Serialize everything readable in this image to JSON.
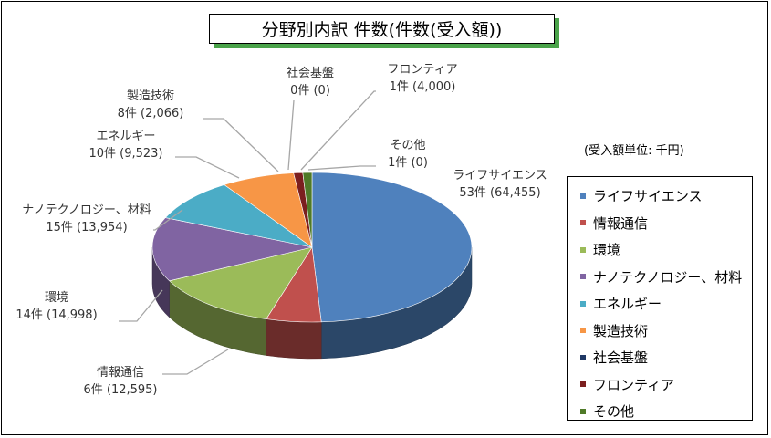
{
  "title": "分野別内訳 件数(件数(受入額))",
  "unit_note": "(受入額単位: 千円)",
  "chart_data": {
    "type": "pie",
    "style": "3d",
    "title": "分野別内訳 件数(件数(受入額))",
    "categories": [
      "ライフサイエンス",
      "情報通信",
      "環境",
      "ナノテクノロジー、材料",
      "エネルギー",
      "製造技術",
      "社会基盤",
      "フロンティア",
      "その他"
    ],
    "values": [
      53,
      6,
      14,
      15,
      10,
      8,
      0,
      1,
      1
    ],
    "amounts": [
      64455,
      12595,
      14998,
      13954,
      9523,
      2066,
      0,
      4000,
      0
    ],
    "data_labels": [
      {
        "name": "ライフサイエンス",
        "text": "53件 (64,455)"
      },
      {
        "name": "情報通信",
        "text": "6件 (12,595)"
      },
      {
        "name": "環境",
        "text": "14件 (14,998)"
      },
      {
        "name": "ナノテクノロジー、材料",
        "text": "15件 (13,954)"
      },
      {
        "name": "エネルギー",
        "text": "10件 (9,523)"
      },
      {
        "name": "製造技術",
        "text": "8件 (2,066)"
      },
      {
        "name": "社会基盤",
        "text": "0件 (0)"
      },
      {
        "name": "フロンティア",
        "text": "1件 (4,000)"
      },
      {
        "name": "その他",
        "text": "1件 (0)"
      }
    ],
    "colors": [
      "#4f81bd",
      "#c0504d",
      "#9bbb59",
      "#8064a2",
      "#4bacc6",
      "#f79646",
      "#1f3864",
      "#7b1f1f",
      "#4f7a28"
    ],
    "legend_position": "right"
  },
  "legend": {
    "items": [
      {
        "label": "ライフサイエンス",
        "color": "#4f81bd"
      },
      {
        "label": "情報通信",
        "color": "#c0504d"
      },
      {
        "label": "環境",
        "color": "#9bbb59"
      },
      {
        "label": "ナノテクノロジー、材料",
        "color": "#8064a2"
      },
      {
        "label": "エネルギー",
        "color": "#4bacc6"
      },
      {
        "label": "製造技術",
        "color": "#f79646"
      },
      {
        "label": "社会基盤",
        "color": "#1f3864"
      },
      {
        "label": "フロンティア",
        "color": "#7b1f1f"
      },
      {
        "label": "その他",
        "color": "#4f7a28"
      }
    ]
  }
}
